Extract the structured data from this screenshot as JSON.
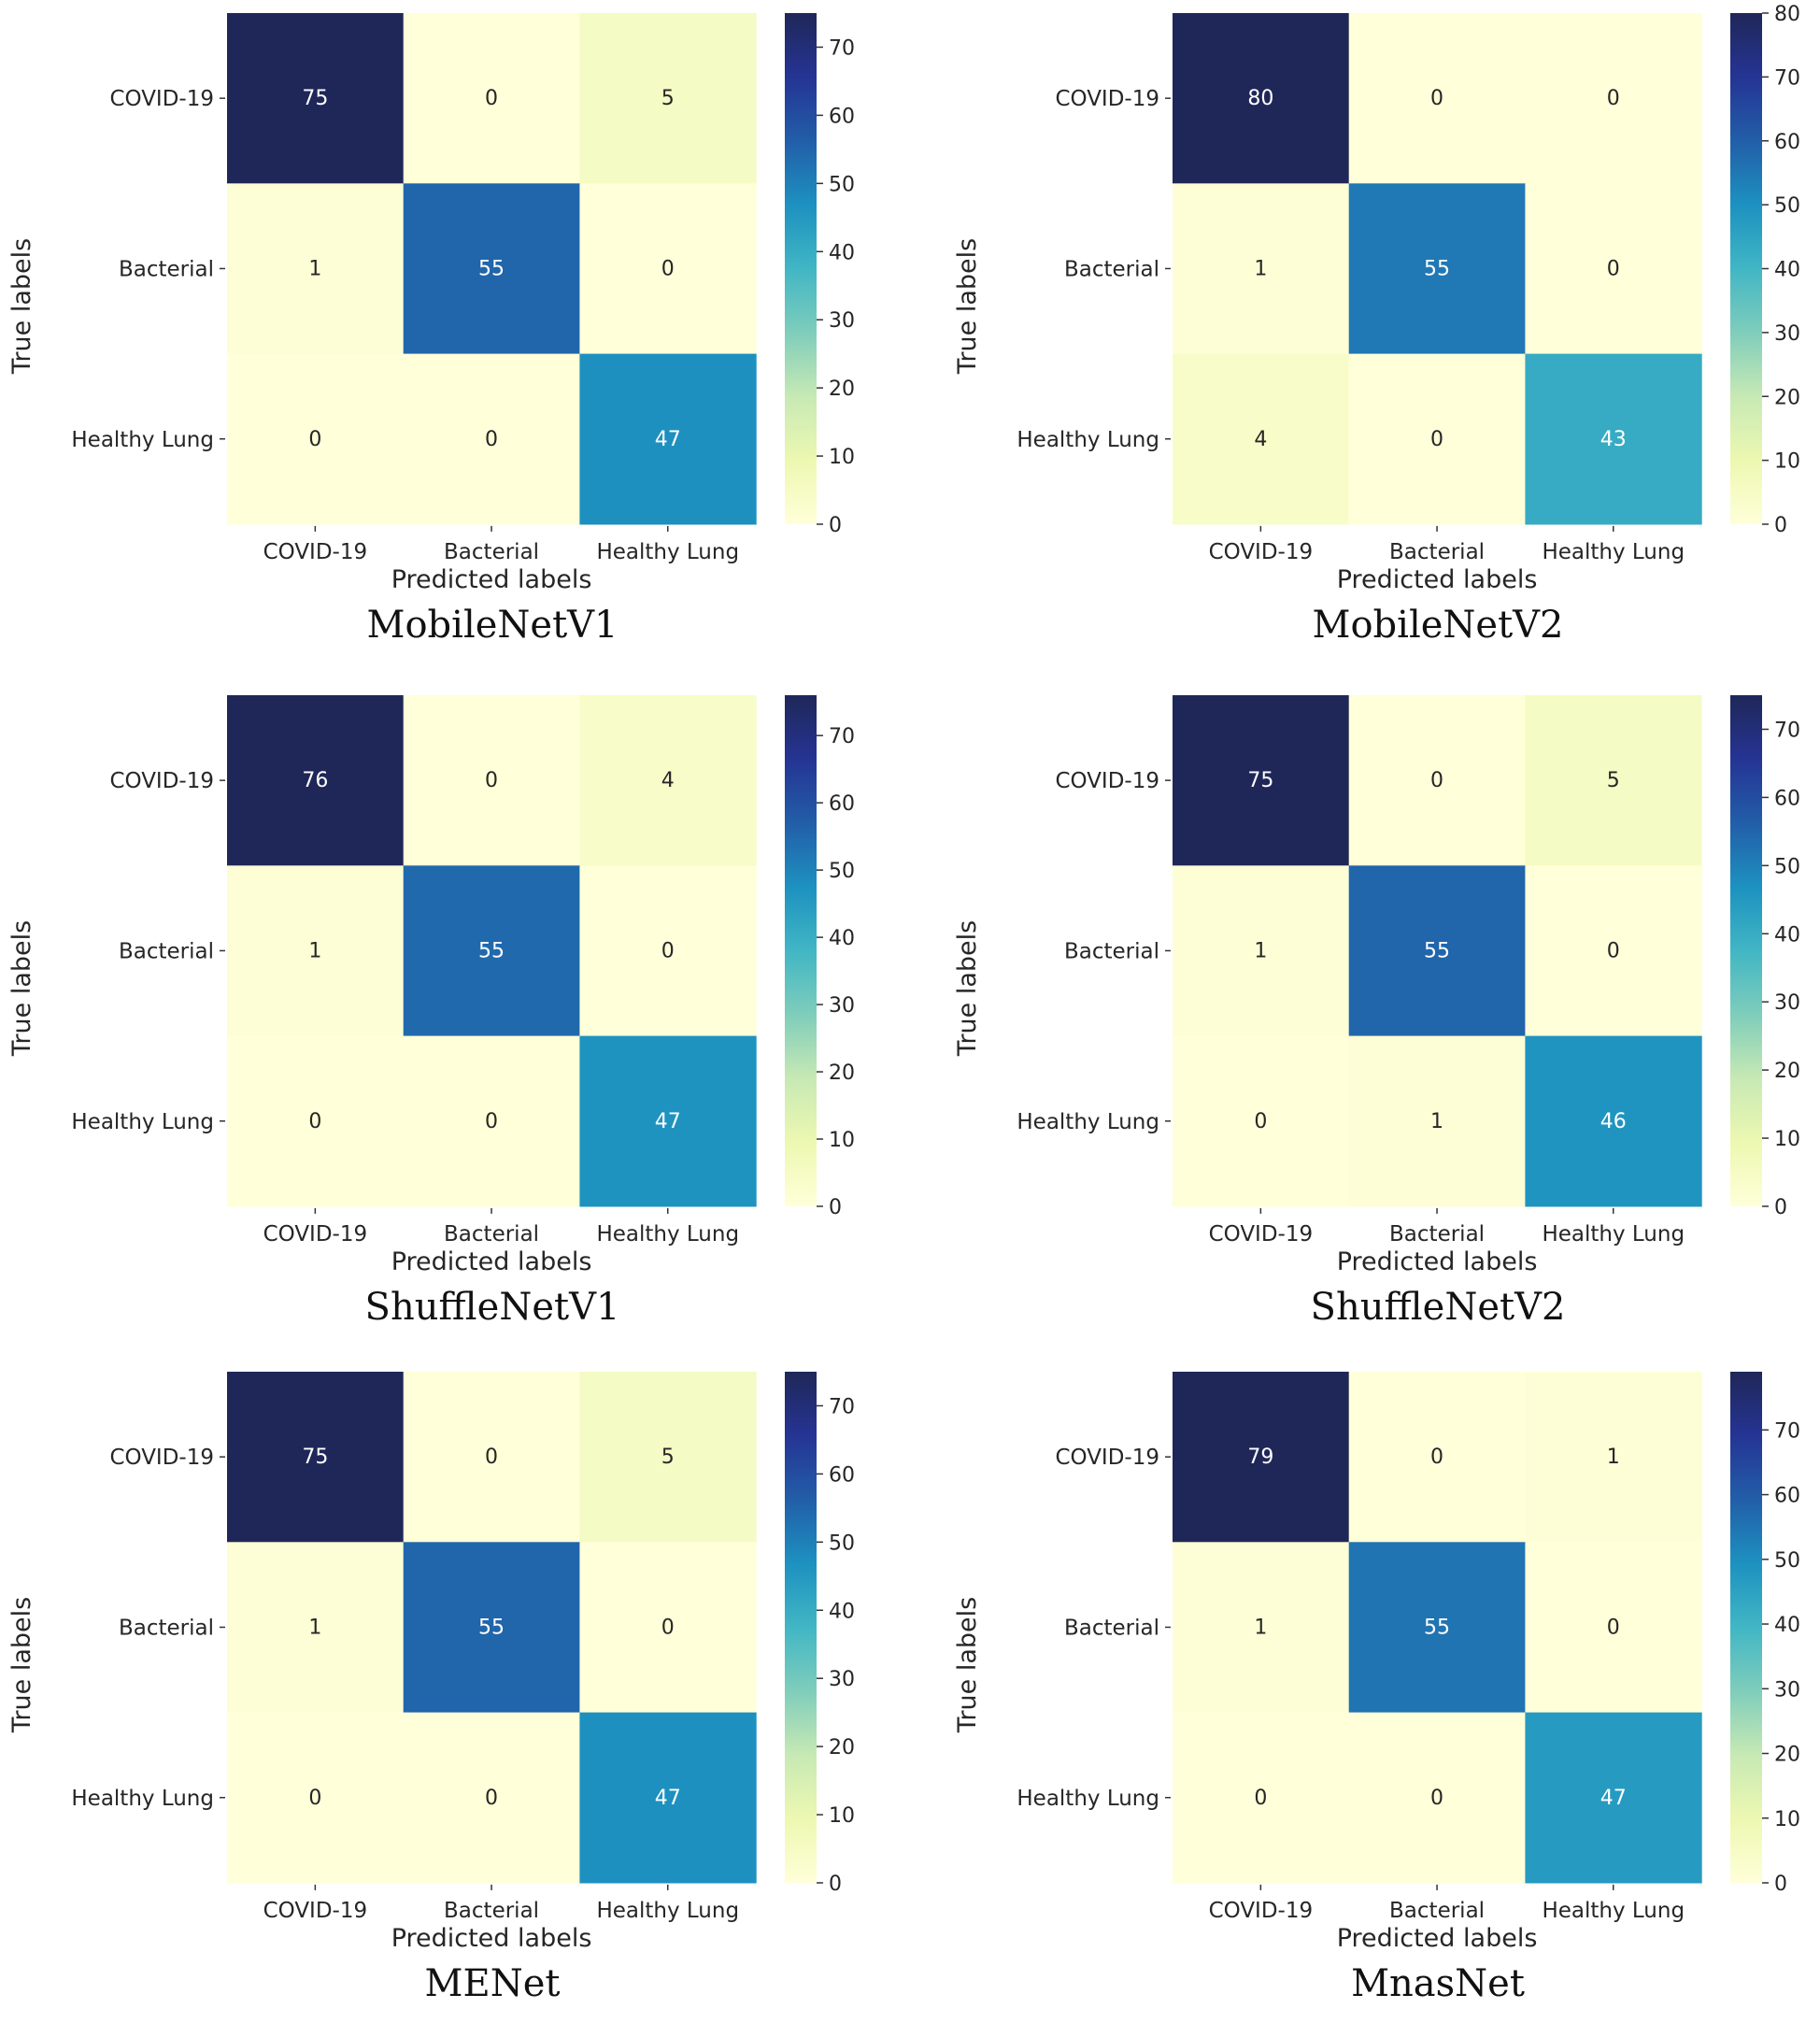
{
  "colors": {
    "scale": [
      "#ffffd9",
      "#edf8b1",
      "#c7e9b4",
      "#7fcdbb",
      "#41b6c4",
      "#1d91c0",
      "#225ea8",
      "#253494",
      "#1f2758"
    ],
    "text_dark": "#262626",
    "text_light": "#ffffff"
  },
  "chart_data": [
    {
      "type": "heatmap",
      "caption": "MobileNetV1",
      "xlabel": "Predicted labels",
      "ylabel": "True labels",
      "x_categories": [
        "COVID-19",
        "Bacterial",
        "Healthy Lung"
      ],
      "y_categories": [
        "COVID-19",
        "Bacterial",
        "Healthy Lung"
      ],
      "values": [
        [
          75,
          0,
          5
        ],
        [
          1,
          55,
          0
        ],
        [
          0,
          0,
          47
        ]
      ],
      "colorbar": {
        "min": 0,
        "max": 75,
        "ticks": [
          0,
          10,
          20,
          30,
          40,
          50,
          60,
          70
        ]
      }
    },
    {
      "type": "heatmap",
      "caption": "MobileNetV2",
      "xlabel": "Predicted labels",
      "ylabel": "True labels",
      "x_categories": [
        "COVID-19",
        "Bacterial",
        "Healthy Lung"
      ],
      "y_categories": [
        "COVID-19",
        "Bacterial",
        "Healthy Lung"
      ],
      "values": [
        [
          80,
          0,
          0
        ],
        [
          1,
          55,
          0
        ],
        [
          4,
          0,
          43
        ]
      ],
      "colorbar": {
        "min": 0,
        "max": 80,
        "ticks": [
          0,
          10,
          20,
          30,
          40,
          50,
          60,
          70,
          80
        ]
      }
    },
    {
      "type": "heatmap",
      "caption": "ShuffleNetV1",
      "xlabel": "Predicted labels",
      "ylabel": "True labels",
      "x_categories": [
        "COVID-19",
        "Bacterial",
        "Healthy Lung"
      ],
      "y_categories": [
        "COVID-19",
        "Bacterial",
        "Healthy Lung"
      ],
      "values": [
        [
          76,
          0,
          4
        ],
        [
          1,
          55,
          0
        ],
        [
          0,
          0,
          47
        ]
      ],
      "colorbar": {
        "min": 0,
        "max": 76,
        "ticks": [
          0,
          10,
          20,
          30,
          40,
          50,
          60,
          70
        ]
      }
    },
    {
      "type": "heatmap",
      "caption": "ShuffleNetV2",
      "xlabel": "Predicted labels",
      "ylabel": "True labels",
      "x_categories": [
        "COVID-19",
        "Bacterial",
        "Healthy Lung"
      ],
      "y_categories": [
        "COVID-19",
        "Bacterial",
        "Healthy Lung"
      ],
      "values": [
        [
          75,
          0,
          5
        ],
        [
          1,
          55,
          0
        ],
        [
          0,
          1,
          46
        ]
      ],
      "colorbar": {
        "min": 0,
        "max": 75,
        "ticks": [
          0,
          10,
          20,
          30,
          40,
          50,
          60,
          70
        ]
      }
    },
    {
      "type": "heatmap",
      "caption": "MENet",
      "xlabel": "Predicted labels",
      "ylabel": "True labels",
      "x_categories": [
        "COVID-19",
        "Bacterial",
        "Healthy Lung"
      ],
      "y_categories": [
        "COVID-19",
        "Bacterial",
        "Healthy Lung"
      ],
      "values": [
        [
          75,
          0,
          5
        ],
        [
          1,
          55,
          0
        ],
        [
          0,
          0,
          47
        ]
      ],
      "colorbar": {
        "min": 0,
        "max": 75,
        "ticks": [
          0,
          10,
          20,
          30,
          40,
          50,
          60,
          70
        ]
      }
    },
    {
      "type": "heatmap",
      "caption": "MnasNet",
      "xlabel": "Predicted labels",
      "ylabel": "True labels",
      "x_categories": [
        "COVID-19",
        "Bacterial",
        "Healthy Lung"
      ],
      "y_categories": [
        "COVID-19",
        "Bacterial",
        "Healthy Lung"
      ],
      "values": [
        [
          79,
          0,
          1
        ],
        [
          1,
          55,
          0
        ],
        [
          0,
          0,
          47
        ]
      ],
      "colorbar": {
        "min": 0,
        "max": 79,
        "ticks": [
          0,
          10,
          20,
          30,
          40,
          50,
          60,
          70
        ]
      }
    }
  ]
}
